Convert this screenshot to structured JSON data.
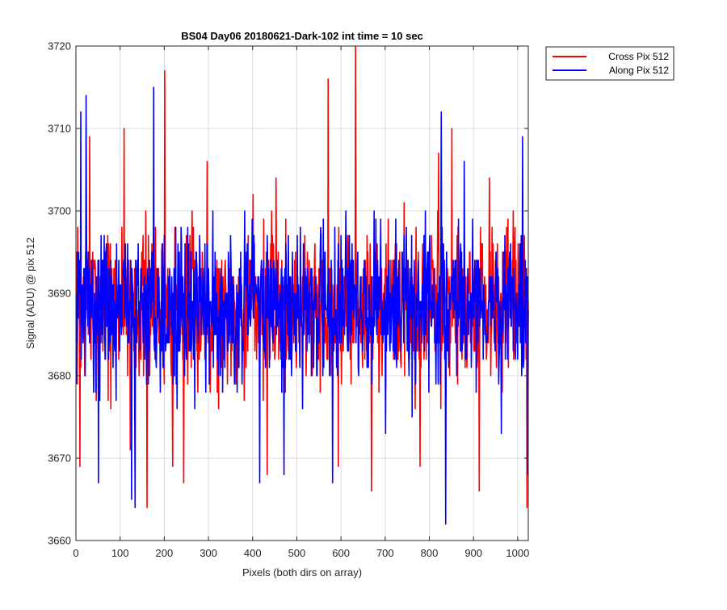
{
  "chart_data": {
    "type": "line",
    "title": "BS04 Day06 20180621-Dark-102 int time = 10 sec",
    "xlabel": "Pixels (both dirs on array)",
    "ylabel": "Signal (ADU) @ pix 512",
    "xlim": [
      0,
      1024
    ],
    "ylim": [
      3660,
      3720
    ],
    "xticks": [
      0,
      100,
      200,
      300,
      400,
      500,
      600,
      700,
      800,
      900,
      1000
    ],
    "yticks": [
      3660,
      3670,
      3680,
      3690,
      3700,
      3710,
      3720
    ],
    "grid": true,
    "legend_position": "outside-top-right",
    "series": [
      {
        "name": "Cross Pix 512",
        "color": "#ff0000",
        "seed": 7,
        "mean": 3688.5,
        "spread": 8.5,
        "spikes": [
          {
            "x": 1,
            "y": 3695
          },
          {
            "x": 8,
            "y": 3669
          },
          {
            "x": 30,
            "y": 3709
          },
          {
            "x": 52,
            "y": 3679
          },
          {
            "x": 78,
            "y": 3676
          },
          {
            "x": 108,
            "y": 3710
          },
          {
            "x": 122,
            "y": 3671
          },
          {
            "x": 160,
            "y": 3664
          },
          {
            "x": 200,
            "y": 3717
          },
          {
            "x": 218,
            "y": 3669
          },
          {
            "x": 243,
            "y": 3667
          },
          {
            "x": 296,
            "y": 3706
          },
          {
            "x": 322,
            "y": 3676
          },
          {
            "x": 400,
            "y": 3702
          },
          {
            "x": 432,
            "y": 3668
          },
          {
            "x": 452,
            "y": 3704
          },
          {
            "x": 552,
            "y": 3678
          },
          {
            "x": 570,
            "y": 3716
          },
          {
            "x": 593,
            "y": 3669
          },
          {
            "x": 632,
            "y": 3720
          },
          {
            "x": 668,
            "y": 3666
          },
          {
            "x": 742,
            "y": 3701
          },
          {
            "x": 778,
            "y": 3669
          },
          {
            "x": 820,
            "y": 3707
          },
          {
            "x": 850,
            "y": 3710
          },
          {
            "x": 912,
            "y": 3666
          },
          {
            "x": 935,
            "y": 3704
          },
          {
            "x": 1020,
            "y": 3664
          }
        ]
      },
      {
        "name": "Along Pix 512",
        "color": "#0000ff",
        "seed": 31,
        "mean": 3688.5,
        "spread": 8.0,
        "spikes": [
          {
            "x": 10,
            "y": 3712
          },
          {
            "x": 22,
            "y": 3714
          },
          {
            "x": 50,
            "y": 3667
          },
          {
            "x": 90,
            "y": 3677
          },
          {
            "x": 125,
            "y": 3665
          },
          {
            "x": 133,
            "y": 3664
          },
          {
            "x": 175,
            "y": 3715
          },
          {
            "x": 228,
            "y": 3676
          },
          {
            "x": 268,
            "y": 3676
          },
          {
            "x": 415,
            "y": 3667
          },
          {
            "x": 470,
            "y": 3668
          },
          {
            "x": 512,
            "y": 3676
          },
          {
            "x": 580,
            "y": 3667
          },
          {
            "x": 610,
            "y": 3700
          },
          {
            "x": 700,
            "y": 3673
          },
          {
            "x": 760,
            "y": 3675
          },
          {
            "x": 790,
            "y": 3700
          },
          {
            "x": 826,
            "y": 3712
          },
          {
            "x": 836,
            "y": 3662
          },
          {
            "x": 878,
            "y": 3706
          },
          {
            "x": 962,
            "y": 3673
          },
          {
            "x": 1010,
            "y": 3709
          },
          {
            "x": 1022,
            "y": 3668
          }
        ]
      }
    ]
  }
}
